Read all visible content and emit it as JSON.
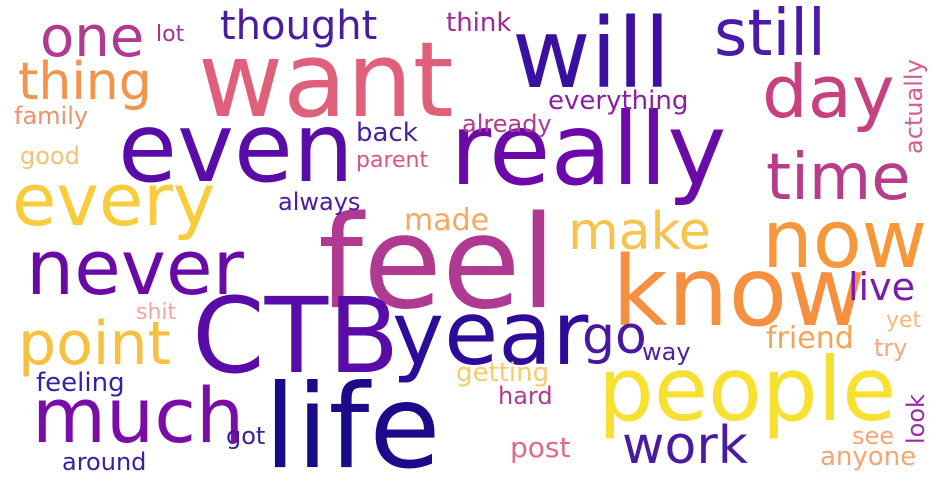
{
  "wordcloud": {
    "words": [
      {
        "text": "want",
        "color": "#e0607a"
      },
      {
        "text": "feel",
        "color": "#b03a92"
      },
      {
        "text": "will",
        "color": "#3b10a0"
      },
      {
        "text": "still",
        "color": "#4a1aa8"
      },
      {
        "text": "day",
        "color": "#c8407e"
      },
      {
        "text": "even",
        "color": "#5a0ca8"
      },
      {
        "text": "really",
        "color": "#6a0aa8"
      },
      {
        "text": "every",
        "color": "#f8cc3a"
      },
      {
        "text": "time",
        "color": "#b83c88"
      },
      {
        "text": "now",
        "color": "#f8963a"
      },
      {
        "text": "never",
        "color": "#6a0aa6"
      },
      {
        "text": "know",
        "color": "#f69040"
      },
      {
        "text": "CTB",
        "color": "#5a0ca8"
      },
      {
        "text": "year",
        "color": "#2e0b98"
      },
      {
        "text": "life",
        "color": "#1c0b88"
      },
      {
        "text": "people",
        "color": "#f8e030"
      },
      {
        "text": "much",
        "color": "#7a0ca8"
      },
      {
        "text": "point",
        "color": "#f8c040"
      },
      {
        "text": "work",
        "color": "#4a1aa0"
      },
      {
        "text": "go",
        "color": "#4a18a0"
      },
      {
        "text": "make",
        "color": "#f6c34c"
      },
      {
        "text": "one",
        "color": "#b03a8e"
      },
      {
        "text": "thought",
        "color": "#4a1ca0"
      },
      {
        "text": "thing",
        "color": "#f4944a"
      },
      {
        "text": "lot",
        "color": "#a8308e"
      },
      {
        "text": "think",
        "color": "#9a2c9a"
      },
      {
        "text": "everything",
        "color": "#8b1fa4"
      },
      {
        "text": "family",
        "color": "#f0906a"
      },
      {
        "text": "back",
        "color": "#4a20a2"
      },
      {
        "text": "already",
        "color": "#b03a92"
      },
      {
        "text": "good",
        "color": "#f4c274"
      },
      {
        "text": "parent",
        "color": "#d85488"
      },
      {
        "text": "actually",
        "color": "#d85c8c"
      },
      {
        "text": "always",
        "color": "#5018a4"
      },
      {
        "text": "made",
        "color": "#f8a860"
      },
      {
        "text": "live",
        "color": "#7a1cae"
      },
      {
        "text": "shit",
        "color": "#f6a4a0"
      },
      {
        "text": "friend",
        "color": "#f6a454"
      },
      {
        "text": "yet",
        "color": "#f8b878"
      },
      {
        "text": "try",
        "color": "#f4a880"
      },
      {
        "text": "way",
        "color": "#5020a0"
      },
      {
        "text": "feeling",
        "color": "#3a20a0"
      },
      {
        "text": "getting",
        "color": "#f8cc68"
      },
      {
        "text": "look",
        "color": "#9a2caa"
      },
      {
        "text": "hard",
        "color": "#b03a8e"
      },
      {
        "text": "got",
        "color": "#3a20a0"
      },
      {
        "text": "see",
        "color": "#f6a874"
      },
      {
        "text": "around",
        "color": "#3a20a0"
      },
      {
        "text": "post",
        "color": "#e06a8a"
      },
      {
        "text": "anyone",
        "color": "#f8a470"
      }
    ]
  }
}
